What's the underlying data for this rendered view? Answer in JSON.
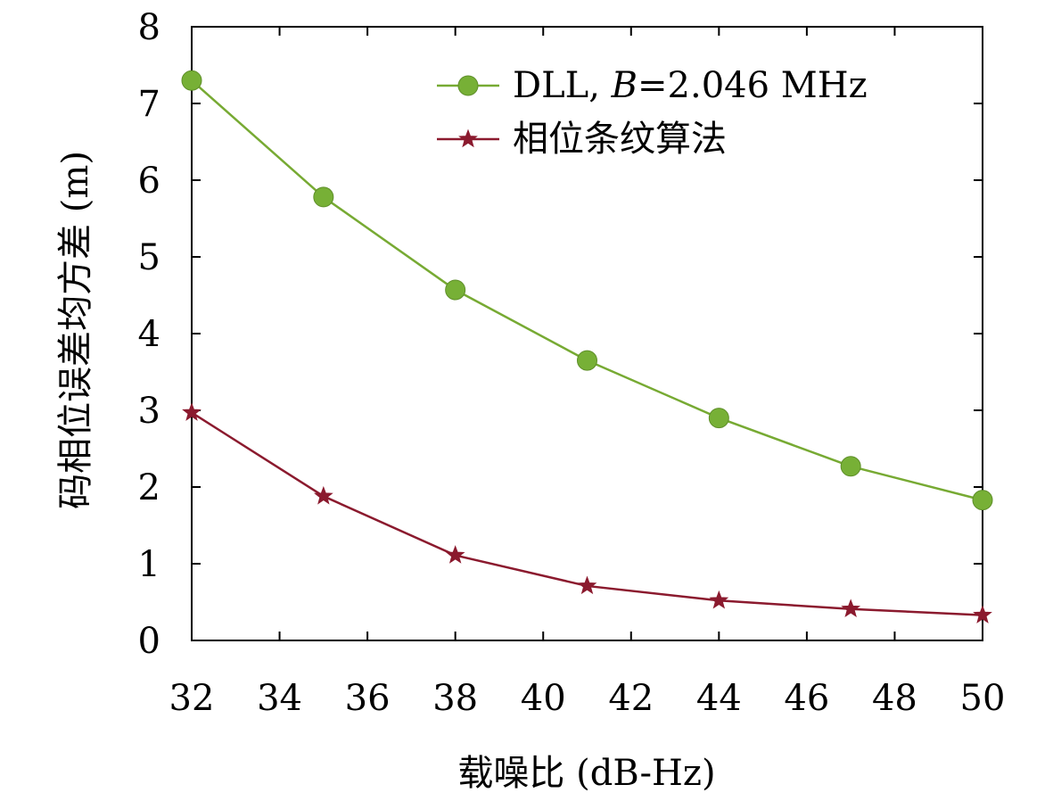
{
  "chart_data": {
    "type": "line",
    "xlabel": "载噪比 (dB-Hz)",
    "ylabel": "码相位误差均方差 (m)",
    "xlim": [
      32,
      50
    ],
    "ylim": [
      0,
      8
    ],
    "xticks": [
      32,
      34,
      36,
      38,
      40,
      42,
      44,
      46,
      48,
      50
    ],
    "yticks": [
      0,
      1,
      2,
      3,
      4,
      5,
      6,
      7,
      8
    ],
    "grid": false,
    "legend_position": "top-right",
    "series": [
      {
        "name": "DLL, B=2.046 MHz",
        "name_parts": {
          "pre": "DLL, ",
          "italic": "B",
          "post": "=2.046 MHz"
        },
        "marker": "circle",
        "color": "#77aa33",
        "marker_color": "#77b036",
        "x": [
          32,
          35,
          38,
          41,
          44,
          47,
          50
        ],
        "y": [
          7.3,
          5.78,
          4.57,
          3.65,
          2.9,
          2.27,
          1.83
        ]
      },
      {
        "name": "相位条纹算法",
        "marker": "star",
        "color": "#8b1a2e",
        "marker_color": "#8b1a2e",
        "x": [
          32,
          35,
          38,
          41,
          44,
          47,
          50
        ],
        "y": [
          2.97,
          1.88,
          1.11,
          0.71,
          0.52,
          0.41,
          0.33
        ]
      }
    ]
  }
}
